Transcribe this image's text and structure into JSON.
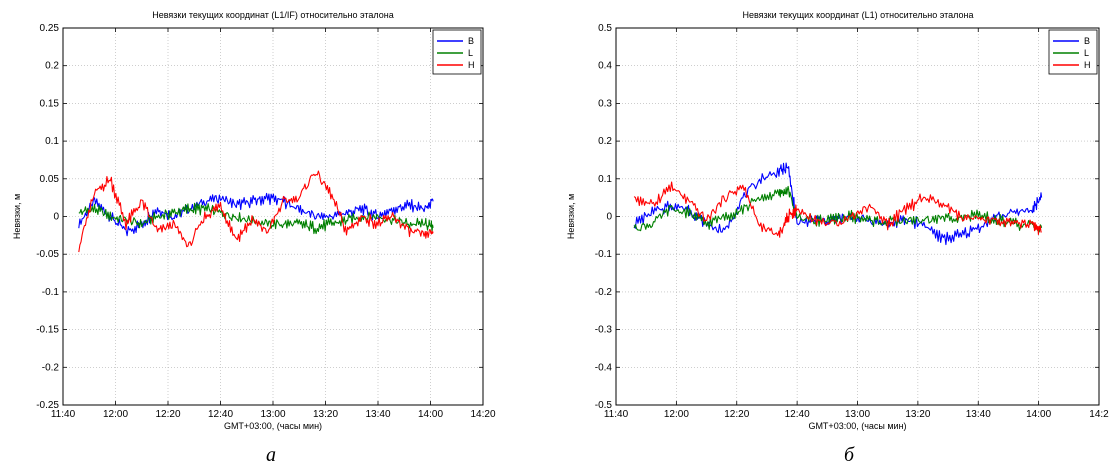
{
  "chart_data": [
    {
      "type": "line",
      "title": "Невязки текущих координат (L1/IF) относительно эталона",
      "xlabel": "GMT+03:00, (часы мин)",
      "ylabel": "Невязки, м",
      "caption": "а",
      "xlim": [
        "11:40",
        "14:20"
      ],
      "ylim": [
        -0.25,
        0.25
      ],
      "x_ticks": [
        "11:40",
        "12:00",
        "12:20",
        "12:40",
        "13:00",
        "13:20",
        "13:40",
        "14:00",
        "14:20"
      ],
      "y_ticks": [
        "0.25",
        "0.2",
        "0.15",
        "0.1",
        "0.05",
        "0",
        "-0.05",
        "-0.1",
        "-0.15",
        "-0.2",
        "-0.25"
      ],
      "grid": true,
      "legend_position": "top-right",
      "x": [
        "11:46",
        "11:52",
        "11:58",
        "12:04",
        "12:10",
        "12:16",
        "12:22",
        "12:28",
        "12:34",
        "12:40",
        "12:46",
        "12:52",
        "12:58",
        "13:04",
        "13:10",
        "13:16",
        "13:22",
        "13:28",
        "13:34",
        "13:40",
        "13:46",
        "13:52",
        "13:58",
        "14:01"
      ],
      "series": [
        {
          "name": "B",
          "color": "#0000ff",
          "values": [
            -0.01,
            0.02,
            0.0,
            -0.02,
            -0.01,
            0.01,
            0.0,
            0.01,
            0.02,
            0.025,
            0.015,
            0.02,
            0.025,
            0.02,
            0.01,
            0.0,
            0.0,
            0.005,
            0.01,
            0.0,
            0.01,
            0.015,
            0.01,
            0.02
          ]
        },
        {
          "name": "L",
          "color": "#008000",
          "values": [
            0.005,
            0.01,
            0.0,
            -0.005,
            -0.01,
            0.0,
            0.005,
            0.01,
            0.01,
            0.005,
            0.0,
            -0.005,
            -0.01,
            -0.01,
            -0.01,
            -0.015,
            -0.01,
            -0.005,
            0.0,
            0.0,
            -0.005,
            -0.01,
            -0.01,
            -0.015
          ]
        },
        {
          "name": "H",
          "color": "#ff0000",
          "values": [
            -0.04,
            0.03,
            0.05,
            -0.01,
            0.02,
            -0.02,
            -0.01,
            -0.04,
            0.0,
            0.015,
            -0.03,
            -0.005,
            -0.02,
            0.02,
            0.025,
            0.06,
            0.03,
            -0.02,
            0.0,
            -0.01,
            0.0,
            -0.02,
            -0.025,
            -0.02
          ]
        }
      ]
    },
    {
      "type": "line",
      "title": "Невязки текущих координат (L1) относительно эталона",
      "xlabel": "GMT+03:00, (часы мин)",
      "ylabel": "Невязки, м",
      "caption": "б",
      "xlim": [
        "11:40",
        "14:20"
      ],
      "ylim": [
        -0.5,
        0.5
      ],
      "x_ticks": [
        "11:40",
        "12:00",
        "12:20",
        "12:40",
        "13:00",
        "13:20",
        "13:40",
        "14:00",
        "14:2"
      ],
      "y_ticks": [
        "0.5",
        "0.4",
        "0.3",
        "0.2",
        "0.1",
        "0",
        "-0.1",
        "-0.2",
        "-0.3",
        "-0.4",
        "-0.5"
      ],
      "grid": true,
      "legend_position": "top-right",
      "x": [
        "11:46",
        "11:52",
        "11:58",
        "12:04",
        "12:10",
        "12:16",
        "12:22",
        "12:28",
        "12:34",
        "12:37",
        "12:40",
        "12:46",
        "12:52",
        "12:58",
        "13:04",
        "13:10",
        "13:16",
        "13:22",
        "13:28",
        "13:34",
        "13:40",
        "13:46",
        "13:52",
        "13:58",
        "14:01"
      ],
      "series": [
        {
          "name": "B",
          "color": "#0000ff",
          "values": [
            -0.02,
            0.01,
            0.03,
            0.02,
            -0.02,
            -0.04,
            0.05,
            0.1,
            0.12,
            0.13,
            -0.02,
            -0.01,
            -0.01,
            0.0,
            -0.01,
            -0.02,
            -0.01,
            -0.02,
            -0.06,
            -0.05,
            -0.03,
            0.0,
            0.01,
            0.02,
            0.05
          ]
        },
        {
          "name": "L",
          "color": "#008000",
          "values": [
            -0.03,
            -0.02,
            0.02,
            0.01,
            -0.02,
            0.0,
            0.02,
            0.05,
            0.06,
            0.07,
            0.0,
            -0.01,
            -0.01,
            0.0,
            -0.01,
            -0.015,
            -0.01,
            -0.01,
            -0.005,
            0.0,
            0.0,
            -0.01,
            -0.02,
            -0.025,
            -0.03
          ]
        },
        {
          "name": "H",
          "color": "#ff0000",
          "values": [
            0.05,
            0.03,
            0.08,
            0.04,
            -0.01,
            0.05,
            0.08,
            -0.03,
            -0.05,
            0.0,
            0.02,
            -0.01,
            -0.02,
            0.0,
            0.03,
            -0.02,
            0.02,
            0.05,
            0.03,
            0.0,
            -0.01,
            -0.01,
            -0.02,
            -0.02,
            -0.04
          ]
        }
      ]
    }
  ]
}
